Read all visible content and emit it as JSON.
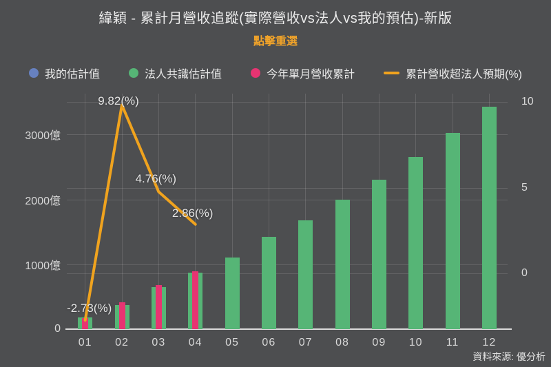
{
  "title": "緯穎 - 累計月營收追蹤(實際營收vs法人vs我的預估)-新版",
  "subtitle": "點擊重選",
  "source_note": "資料來源: 優分析",
  "colors": {
    "background": "#4d4e50",
    "title_text": "#ebebeb",
    "subtitle_accent": "#f0a32a",
    "axis_text": "#d8d8d8",
    "grid_line": "#67686a",
    "my_estimate_blue": "#6781c0",
    "consensus_green": "#56b576",
    "actual_pink": "#e73472",
    "beat_line_orange": "#f0a31e"
  },
  "legend": [
    {
      "label": "我的估計值",
      "marker": "circle",
      "color": "#6781c0"
    },
    {
      "label": "法人共識估計值",
      "marker": "circle",
      "color": "#56b576"
    },
    {
      "label": "今年單月營收累計",
      "marker": "circle",
      "color": "#e73472"
    },
    {
      "label": "累計營收超法人預期(%)",
      "marker": "line",
      "color": "#f0a31e"
    }
  ],
  "chart_data": {
    "type": "bar",
    "title": "緯穎 - 累計月營收追蹤(實際營收vs法人vs我的預估)-新版",
    "subtitle": "點擊重選",
    "categories": [
      "01",
      "02",
      "03",
      "04",
      "05",
      "06",
      "07",
      "08",
      "09",
      "10",
      "11",
      "12"
    ],
    "series": [
      {
        "key": "mine",
        "name": "我的估計值",
        "type": "bar",
        "axis": "left",
        "color": "#6781c0",
        "unit": "億",
        "values": [
          null,
          null,
          null,
          null,
          null,
          null,
          null,
          null,
          null,
          null,
          null,
          null
        ]
      },
      {
        "key": "consensus",
        "name": "法人共識估計值",
        "type": "bar",
        "axis": "left",
        "color": "#56b576",
        "unit": "億",
        "values": [
          180,
          375,
          650,
          870,
          1100,
          1420,
          1680,
          2000,
          2300,
          2650,
          3030,
          3430
        ]
      },
      {
        "key": "actual",
        "name": "今年單月營收累計",
        "type": "bar",
        "axis": "left",
        "color": "#e73472",
        "unit": "億",
        "values": [
          175,
          412,
          681,
          895,
          null,
          null,
          null,
          null,
          null,
          null,
          null,
          null
        ]
      },
      {
        "key": "beat_pct",
        "name": "累計營收超法人預期(%)",
        "type": "line",
        "axis": "right",
        "color": "#f0a31e",
        "unit": "%",
        "values": [
          -2.73,
          9.82,
          4.76,
          2.86,
          null,
          null,
          null,
          null,
          null,
          null,
          null,
          null
        ],
        "point_labels": [
          "-2.73(%)",
          "9.82(%)",
          "4.76(%)",
          "2.86(%)"
        ]
      }
    ],
    "axes": {
      "left": {
        "unit": "億",
        "range": [
          0,
          3630
        ],
        "ticks": [
          {
            "value": 0,
            "label": "0"
          },
          {
            "value": 1000,
            "label": "1000億"
          },
          {
            "value": 2000,
            "label": "2000億"
          },
          {
            "value": 3000,
            "label": "3000億"
          }
        ]
      },
      "right": {
        "unit": "%",
        "range": [
          -3.3,
          10.5
        ],
        "ticks": [
          {
            "value": 0,
            "label": "0"
          },
          {
            "value": 5,
            "label": "5"
          },
          {
            "value": 10,
            "label": "10"
          }
        ]
      }
    },
    "grid": true,
    "legend_position": "top"
  }
}
